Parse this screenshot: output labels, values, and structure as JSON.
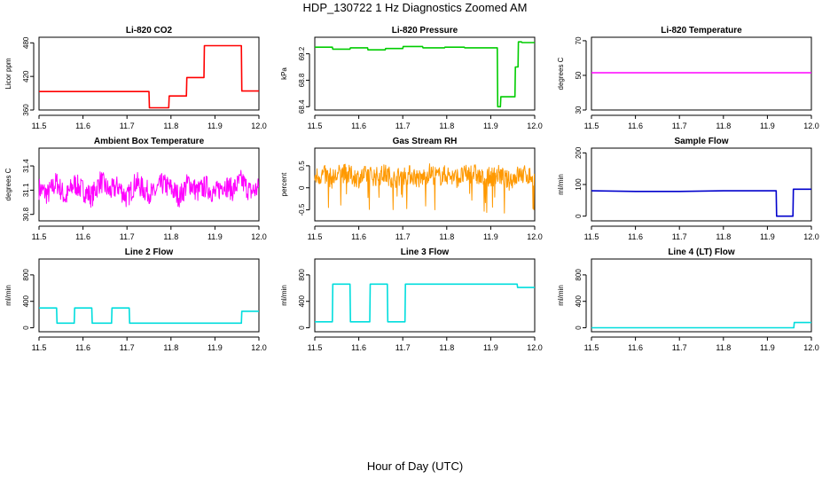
{
  "figure": {
    "title": "HDP_130722  1 Hz Diagnostics Zoomed AM",
    "xlabel": "Hour of Day (UTC)"
  },
  "chart_data": [
    {
      "type": "line",
      "title": "Li-820 CO2",
      "ylabel": "Licor ppm",
      "color": "#ff0000",
      "xlim": [
        11.5,
        12.0
      ],
      "ylim": [
        360,
        490
      ],
      "xticks": [
        "11.5",
        "11.6",
        "11.7",
        "11.8",
        "11.9",
        "12.0"
      ],
      "yticks": [
        360,
        420,
        480
      ],
      "series": [
        {
          "x": [
            11.5,
            11.75,
            11.751,
            11.795,
            11.796,
            11.835,
            11.836,
            11.875,
            11.876,
            11.96,
            11.961,
            12.0
          ],
          "y": [
            393,
            393,
            364,
            364,
            385,
            385,
            418,
            418,
            475,
            475,
            394,
            394
          ]
        }
      ]
    },
    {
      "type": "line",
      "title": "Li-820 Pressure",
      "ylabel": "kPa",
      "color": "#00cc00",
      "xlim": [
        11.5,
        12.0
      ],
      "ylim": [
        68.35,
        69.45
      ],
      "xticks": [
        "11.5",
        "11.6",
        "11.7",
        "11.8",
        "11.9",
        "12.0"
      ],
      "yticks": [
        68.4,
        68.8,
        69.2
      ],
      "series": [
        {
          "x": [
            11.5,
            11.54,
            11.541,
            11.58,
            11.581,
            11.62,
            11.621,
            11.66,
            11.661,
            11.7,
            11.701,
            11.745,
            11.746,
            11.795,
            11.796,
            11.84,
            11.841,
            11.915,
            11.916,
            11.922,
            11.923,
            11.955,
            11.956,
            11.962,
            11.963,
            11.97,
            11.971,
            12.0
          ],
          "y": [
            69.3,
            69.3,
            69.27,
            69.27,
            69.29,
            69.29,
            69.26,
            69.26,
            69.28,
            69.28,
            69.31,
            69.31,
            69.29,
            69.29,
            69.3,
            69.3,
            69.29,
            69.29,
            68.4,
            68.4,
            68.55,
            68.55,
            69.0,
            69.0,
            69.38,
            69.38,
            69.37,
            69.37
          ]
        }
      ]
    },
    {
      "type": "line",
      "title": "Li-820 Temperature",
      "ylabel": "degrees C",
      "color": "#ff00ff",
      "xlim": [
        11.5,
        12.0
      ],
      "ylim": [
        30,
        72
      ],
      "xticks": [
        "11.5",
        "11.6",
        "11.7",
        "11.8",
        "11.9",
        "12.0"
      ],
      "yticks": [
        30,
        50,
        70
      ],
      "series": [
        {
          "x": [
            11.5,
            12.0
          ],
          "y": [
            51.5,
            51.5
          ]
        }
      ]
    },
    {
      "type": "line",
      "title": "Ambient Box Temperature",
      "ylabel": "degrees C",
      "color": "#ff00ff",
      "xlim": [
        11.5,
        12.0
      ],
      "ylim": [
        30.72,
        31.62
      ],
      "xticks": [
        "11.5",
        "11.6",
        "11.7",
        "11.8",
        "11.9",
        "12.0"
      ],
      "yticks": [
        30.8,
        31.1,
        31.4
      ],
      "series": [
        {
          "x": [
            11.5,
            11.52,
            11.54,
            11.56,
            11.58,
            11.6,
            11.62,
            11.64,
            11.66,
            11.68,
            11.7,
            11.72,
            11.74,
            11.76,
            11.78,
            11.8,
            11.82,
            11.84,
            11.86,
            11.88,
            11.9,
            11.92,
            11.94,
            11.96,
            11.98,
            12.0
          ],
          "y": [
            31.12,
            31.05,
            31.2,
            31.0,
            31.18,
            31.1,
            31.02,
            31.22,
            31.08,
            31.15,
            31.0,
            31.2,
            31.1,
            31.05,
            31.18,
            31.12,
            31.02,
            31.2,
            31.08,
            31.15,
            31.05,
            31.18,
            31.1,
            31.22,
            31.08,
            31.12
          ]
        }
      ]
    },
    {
      "type": "line",
      "title": "Gas Stream RH",
      "ylabel": "percent",
      "color": "#ff9900",
      "xlim": [
        11.5,
        12.0
      ],
      "ylim": [
        -0.75,
        0.9
      ],
      "xticks": [
        "11.5",
        "11.6",
        "11.7",
        "11.8",
        "11.9",
        "12.0"
      ],
      "yticks": [
        -0.5,
        0.0,
        0.5
      ],
      "series": [
        {
          "x": [
            11.5,
            11.52,
            11.54,
            11.56,
            11.58,
            11.6,
            11.62,
            11.64,
            11.66,
            11.68,
            11.7,
            11.72,
            11.74,
            11.76,
            11.78,
            11.8,
            11.82,
            11.84,
            11.86,
            11.88,
            11.9,
            11.92,
            11.94,
            11.96,
            11.98,
            12.0
          ],
          "y": [
            0.25,
            0.3,
            0.2,
            0.35,
            0.28,
            0.22,
            0.3,
            0.25,
            0.32,
            0.2,
            0.28,
            0.3,
            0.18,
            0.35,
            0.25,
            0.3,
            0.22,
            0.28,
            0.35,
            0.2,
            0.25,
            0.3,
            0.15,
            0.28,
            0.3,
            0.22
          ]
        }
      ]
    },
    {
      "type": "line",
      "title": "Sample Flow",
      "ylabel": "ml/min",
      "color": "#0000cc",
      "xlim": [
        11.5,
        12.0
      ],
      "ylim": [
        -15,
        215
      ],
      "xticks": [
        "11.5",
        "11.6",
        "11.7",
        "11.8",
        "11.9",
        "12.0"
      ],
      "yticks": [
        0,
        100,
        200
      ],
      "series": [
        {
          "x": [
            11.5,
            11.6,
            11.7,
            11.8,
            11.92,
            11.921,
            11.958,
            11.959,
            12.0
          ],
          "y": [
            80,
            78,
            78,
            80,
            80,
            0,
            0,
            85,
            85
          ]
        }
      ]
    },
    {
      "type": "line",
      "title": "Line 2 Flow",
      "ylabel": "ml/min",
      "color": "#00dddd",
      "xlim": [
        11.5,
        12.0
      ],
      "ylim": [
        -60,
        1040
      ],
      "xticks": [
        "11.5",
        "11.6",
        "11.7",
        "11.8",
        "11.9",
        "12.0"
      ],
      "yticks": [
        0,
        400,
        800
      ],
      "series": [
        {
          "x": [
            11.5,
            11.54,
            11.541,
            11.58,
            11.581,
            11.62,
            11.621,
            11.665,
            11.666,
            11.705,
            11.706,
            11.96,
            11.961,
            12.0
          ],
          "y": [
            300,
            300,
            70,
            70,
            300,
            300,
            70,
            70,
            300,
            300,
            70,
            70,
            250,
            250
          ]
        }
      ]
    },
    {
      "type": "line",
      "title": "Line 3 Flow",
      "ylabel": "ml/min",
      "color": "#00dddd",
      "xlim": [
        11.5,
        12.0
      ],
      "ylim": [
        -60,
        1040
      ],
      "xticks": [
        "11.5",
        "11.6",
        "11.7",
        "11.8",
        "11.9",
        "12.0"
      ],
      "yticks": [
        0,
        400,
        800
      ],
      "series": [
        {
          "x": [
            11.5,
            11.54,
            11.541,
            11.58,
            11.581,
            11.625,
            11.626,
            11.665,
            11.666,
            11.705,
            11.706,
            11.96,
            11.961,
            12.0
          ],
          "y": [
            90,
            90,
            660,
            660,
            90,
            90,
            660,
            660,
            90,
            90,
            660,
            660,
            610,
            610
          ]
        }
      ]
    },
    {
      "type": "line",
      "title": "Line 4 (LT) Flow",
      "ylabel": "ml/min",
      "color": "#00dddd",
      "xlim": [
        11.5,
        12.0
      ],
      "ylim": [
        -60,
        1040
      ],
      "xticks": [
        "11.5",
        "11.6",
        "11.7",
        "11.8",
        "11.9",
        "12.0"
      ],
      "yticks": [
        0,
        400,
        800
      ],
      "series": [
        {
          "x": [
            11.5,
            11.96,
            11.961,
            12.0
          ],
          "y": [
            0,
            0,
            80,
            80
          ]
        }
      ]
    }
  ]
}
